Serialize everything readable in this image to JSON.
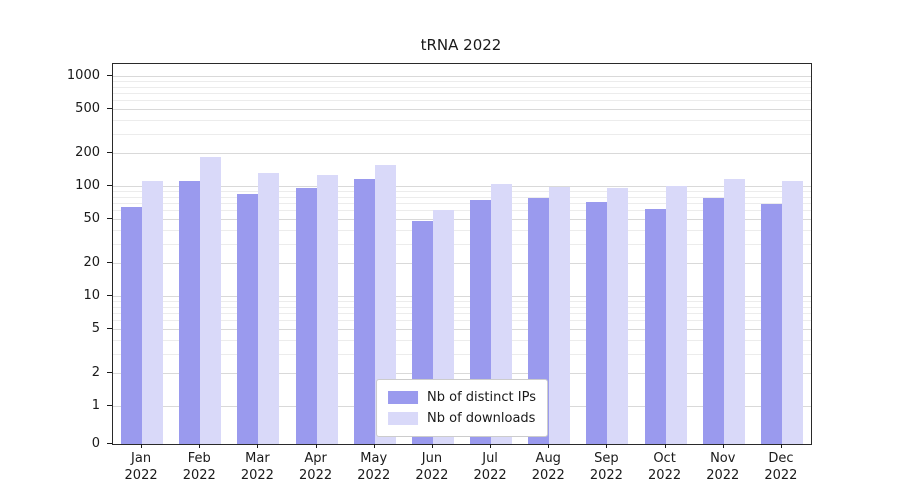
{
  "chart_data": {
    "type": "bar",
    "title": "tRNA 2022",
    "categories": [
      {
        "month": "Jan",
        "year": "2022"
      },
      {
        "month": "Feb",
        "year": "2022"
      },
      {
        "month": "Mar",
        "year": "2022"
      },
      {
        "month": "Apr",
        "year": "2022"
      },
      {
        "month": "May",
        "year": "2022"
      },
      {
        "month": "Jun",
        "year": "2022"
      },
      {
        "month": "Jul",
        "year": "2022"
      },
      {
        "month": "Aug",
        "year": "2022"
      },
      {
        "month": "Sep",
        "year": "2022"
      },
      {
        "month": "Oct",
        "year": "2022"
      },
      {
        "month": "Nov",
        "year": "2022"
      },
      {
        "month": "Dec",
        "year": "2022"
      }
    ],
    "series": [
      {
        "name": "Nb of distinct IPs",
        "color": "#9a9aee",
        "values": [
          65,
          110,
          85,
          95,
          115,
          48,
          75,
          78,
          72,
          62,
          78,
          68
        ]
      },
      {
        "name": "Nb of downloads",
        "color": "#d9d9f9",
        "values": [
          110,
          185,
          130,
          125,
          155,
          60,
          105,
          97,
          95,
          100,
          115,
          112
        ]
      }
    ],
    "yscale": "symlog",
    "yticks": [
      0,
      1,
      2,
      5,
      10,
      20,
      50,
      100,
      200,
      500,
      1000
    ],
    "ylim": [
      0,
      1200
    ],
    "grid": true,
    "legend_position": "lower center",
    "xlabel": "",
    "ylabel": ""
  }
}
